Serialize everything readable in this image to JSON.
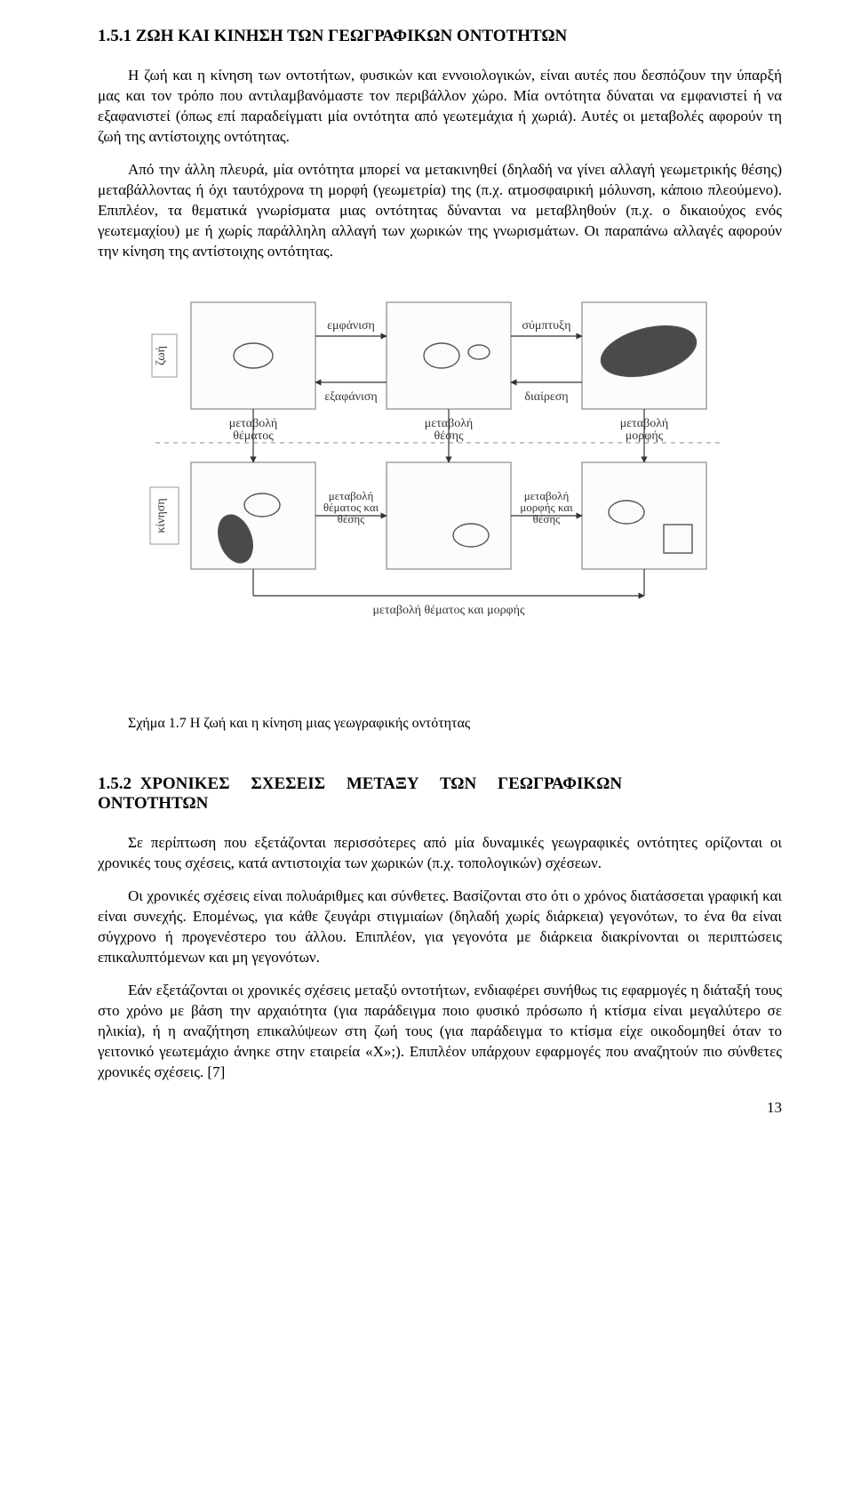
{
  "section1": {
    "title": "1.5.1  ΖΩΗ ΚΑΙ ΚΙΝΗΣΗ ΤΩΝ ΓΕΩΓΡΑΦΙΚΩΝ ΟΝΤΟΤΗΤΩΝ",
    "p1": "Η ζωή και η κίνηση των οντοτήτων, φυσικών και εννοιολογικών, είναι αυτές που δεσπόζουν την ύπαρξή μας και τον τρόπο που αντιλαμβανόμαστε τον περιβάλλον χώρο. Μία οντότητα δύναται να εμφανιστεί ή να εξαφανιστεί (όπως επί παραδείγματι μία οντότητα από γεωτεμάχια ή χωριά). Αυτές οι μεταβολές αφορούν τη ζωή της αντίστοιχης οντότητας.",
    "p2": "Από την άλλη πλευρά, μία οντότητα μπορεί να μετακινηθεί (δηλαδή να γίνει αλλαγή γεωμετρικής θέσης) μεταβάλλοντας ή όχι ταυτόχρονα τη μορφή (γεωμετρία) της (π.χ. ατμοσφαιρική μόλυνση, κάποιο πλεούμενο). Επιπλέον, τα θεματικά γνωρίσματα μιας οντότητας δύνανται να μεταβληθούν (π.χ. ο δικαιούχος ενός γεωτεμαχίου) με ή χωρίς παράλληλη αλλαγή των χωρικών της γνωρισμάτων. Οι παραπάνω αλλαγές αφορούν την κίνηση της αντίστοιχης οντότητας."
  },
  "figure": {
    "caption": "Σχήμα 1.7 Η ζωή και η κίνηση μιας γεωγραφικής οντότητας",
    "labels": {
      "life": "ζωή",
      "motion": "κίνηση",
      "emfanisi": "εμφάνιση",
      "exafanisi": "εξαφάνιση",
      "symptixi": "σύμπτυξη",
      "diairesi": "διαίρεση",
      "metavoli_thematos": "μεταβολή θέματος",
      "metavoli_thesis": "μεταβολή θέσης",
      "metavoli_morfis": "μεταβολή μορφής",
      "metavoli_thematos_thesis": "μεταβολή θέματος και θέσης",
      "metavoli_morfis_thesis": "μεταβολή μορφής και θέσης",
      "metavoli_thematos_morfis": "μεταβολή θέματος και μορφής"
    },
    "style": {
      "box_stroke": "#9a9a9a",
      "box_fill": "#fcfcfc",
      "shape_stroke": "#555555",
      "shape_fill_light": "#fbfbfb",
      "shape_fill_dark": "#4a4a4a",
      "text_color": "#333333",
      "font_size_label": 14,
      "font_size_vertical": 14,
      "dash_color": "#888888"
    }
  },
  "section2": {
    "title_line1": "1.5.2  ΧΡΟΝΙΚΕΣ     ΣΧΕΣΕΙΣ     ΜΕΤΑΞΥ     ΤΩΝ     ΓΕΩΓΡΑΦΙΚΩΝ",
    "title_line2": "ΟΝΤΟΤΗΤΩΝ",
    "p1": "Σε περίπτωση που εξετάζονται περισσότερες από μία δυναμικές γεωγραφικές οντότητες ορίζονται οι χρονικές τους σχέσεις, κατά αντιστοιχία των χωρικών (π.χ. τοπολογικών) σχέσεων.",
    "p2": "Οι χρονικές σχέσεις είναι πολυάριθμες και σύνθετες. Βασίζονται στο ότι ο χρόνος διατάσσεται γραφική και είναι συνεχής. Επομένως, για κάθε ζευγάρι στιγμιαίων (δηλαδή χωρίς διάρκεια) γεγονότων, το ένα θα είναι σύγχρονο ή προγενέστερο του άλλου. Επιπλέον, για γεγονότα με διάρκεια διακρίνονται οι περιπτώσεις επικαλυπτόμενων και μη γεγονότων.",
    "p3": "Εάν εξετάζονται οι χρονικές σχέσεις μεταξύ οντοτήτων, ενδιαφέρει συνήθως τις εφαρμογές η διάταξή τους στο χρόνο με βάση την αρχαιότητα (για παράδειγμα ποιο φυσικό πρόσωπο ή κτίσμα είναι μεγαλύτερο σε ηλικία), ή η αναζήτηση επικαλύψεων στη ζωή τους (για παράδειγμα το κτίσμα είχε οικοδομηθεί όταν το γειτονικό γεωτεμάχιο άνηκε στην εταιρεία «Χ»;). Επιπλέον υπάρχουν εφαρμογές που αναζητούν πιο σύνθετες χρονικές σχέσεις. [7]"
  },
  "pagenum": "13"
}
